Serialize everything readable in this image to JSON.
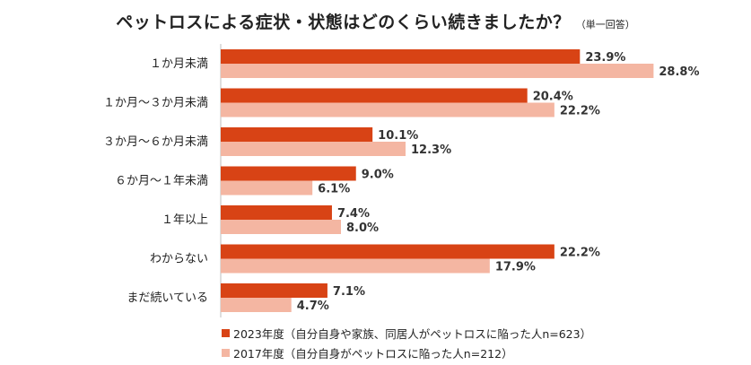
{
  "title": "ペットロスによる症状・状態はどのくらい続きましたか？",
  "subtitle": "（単一回答）",
  "colors": {
    "series_2023": "#d84315",
    "series_2017": "#f4b6a2"
  },
  "legend": [
    "2023年度（自分自身や家族、同居人がペットロスに陥った人n=623）",
    "2017年度（自分自身がペットロスに陥った人n=212）"
  ],
  "chart_data": {
    "type": "bar",
    "orientation": "horizontal",
    "title": "ペットロスによる症状・状態はどのくらい続きましたか？",
    "subtitle": "（単一回答）",
    "categories": [
      "１か月未満",
      "１か月～３か月未満",
      "３か月～６か月未満",
      "６か月～１年未満",
      "１年以上",
      "わからない",
      "まだ続いている"
    ],
    "series": [
      {
        "name": "2023年度（自分自身や家族、同居人がペットロスに陥った人n=623）",
        "values": [
          23.9,
          20.4,
          10.1,
          9.0,
          7.4,
          22.2,
          7.1
        ]
      },
      {
        "name": "2017年度（自分自身がペットロスに陥った人n=212）",
        "values": [
          28.8,
          22.2,
          12.3,
          6.1,
          8.0,
          17.9,
          4.7
        ]
      }
    ],
    "value_labels": [
      [
        "23.9%",
        "20.4%",
        "10.1%",
        "9.0%",
        "7.4%",
        "22.2%",
        "7.1%"
      ],
      [
        "28.8%",
        "22.2%",
        "12.3%",
        "6.1%",
        "8.0%",
        "17.9%",
        "4.7%"
      ]
    ],
    "unit": "%",
    "legend_position": "bottom-left",
    "grid": false
  }
}
